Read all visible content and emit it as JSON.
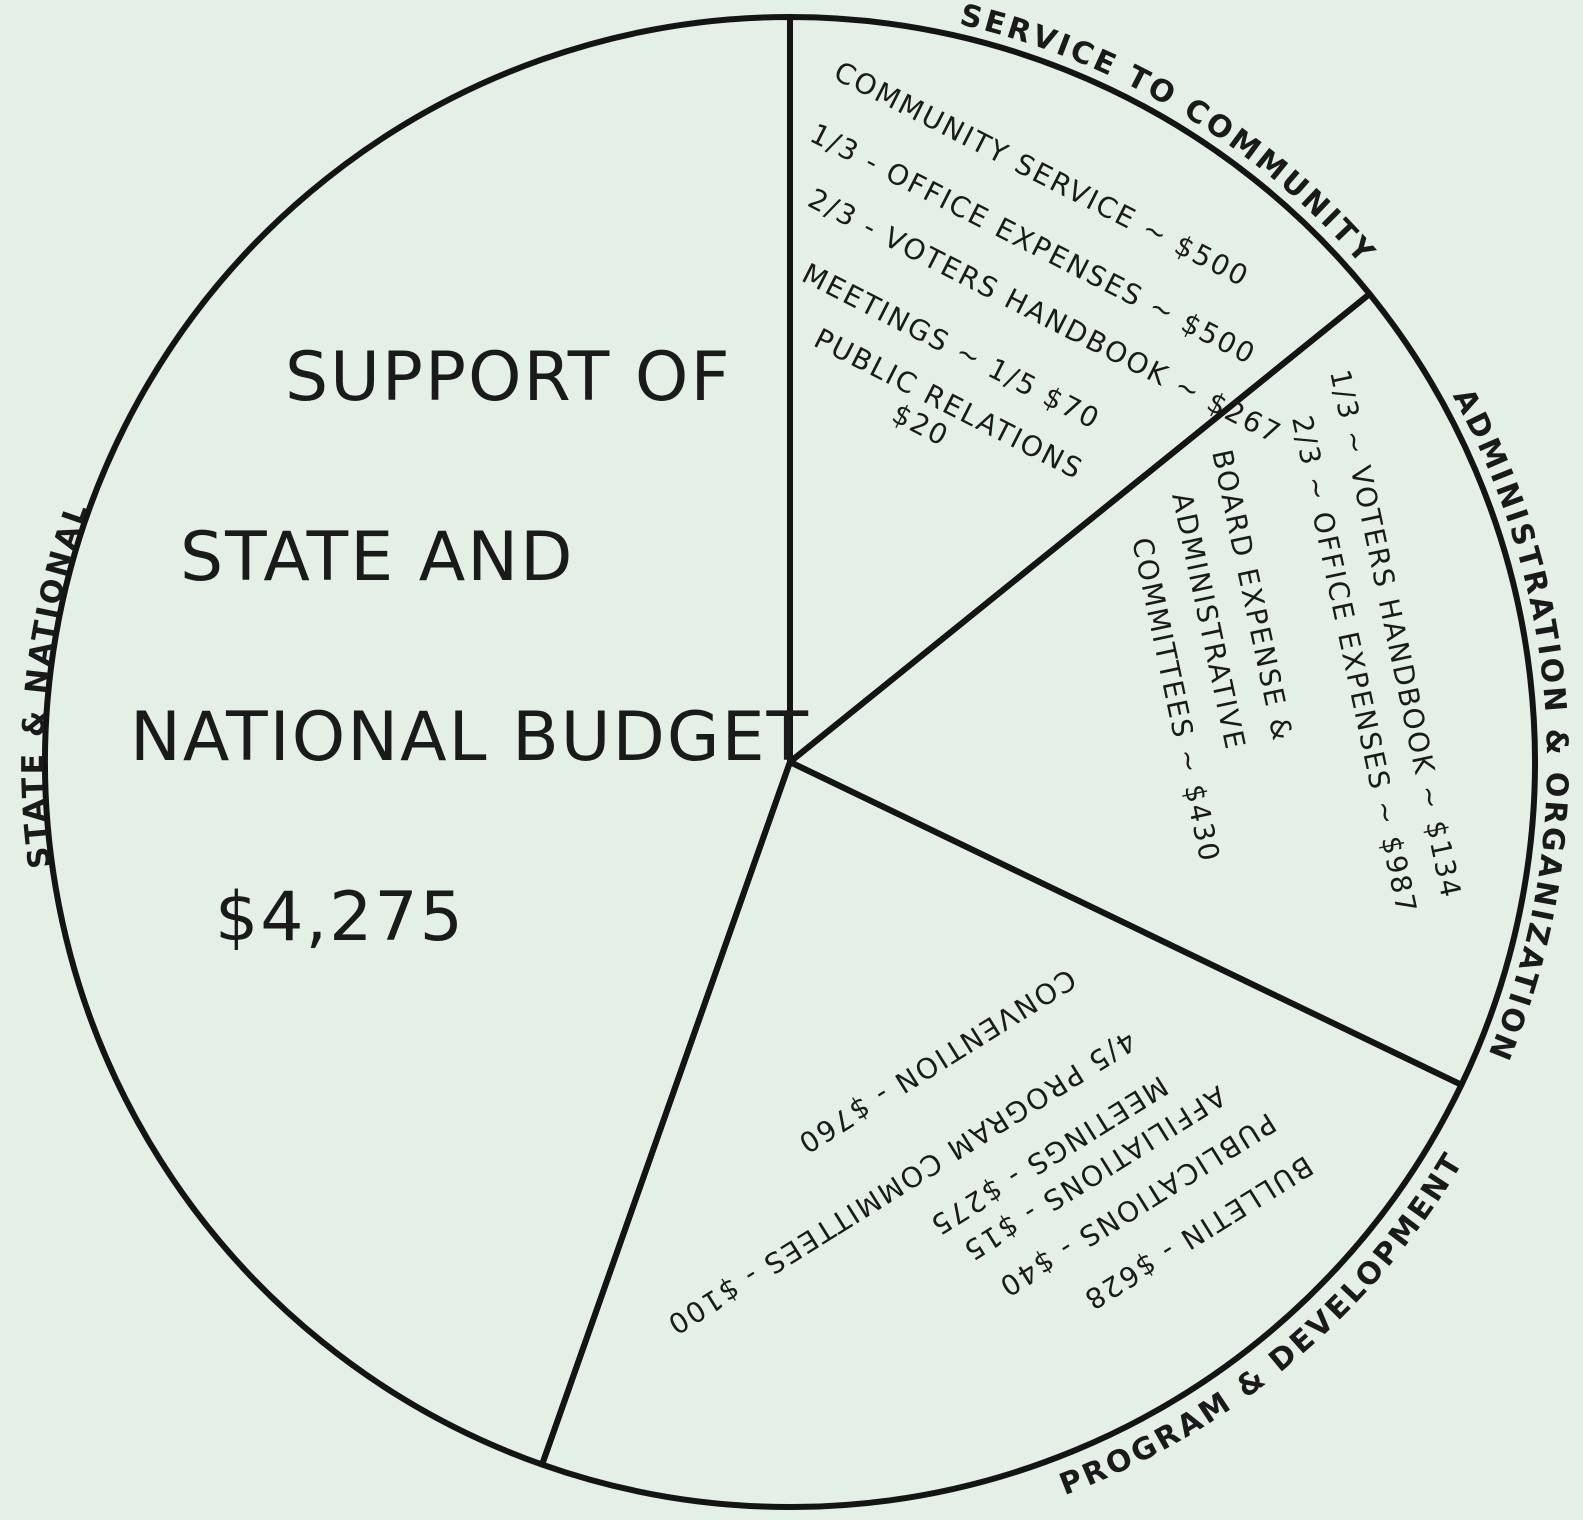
{
  "chart_data": {
    "type": "pie",
    "slices": [
      {
        "name": "SERVICE TO COMMUNITY",
        "value": 1360,
        "items": [
          "COMMUNITY SERVICE ~ $500",
          "1/3 - OFFICE EXPENSES ~ $500",
          "2/3 - VOTERS HANDBOOK ~ $267",
          "MEETINGS ~ 1/5 $70",
          "PUBLIC RELATIONS",
          "$20"
        ]
      },
      {
        "name": "ADMINISTRATION & ORGANIZATION",
        "value": 1720,
        "items": [
          "1/3 ~ VOTERS HANDBOOK ~ $134",
          "2/3 ~ OFFICE EXPENSES ~ $987",
          "BOARD EXPENSE &",
          "ADMINISTRATIVE",
          "COMMITTEES ~ $430"
        ]
      },
      {
        "name": "PROGRAM & DEVELOPMENT",
        "value": 2230,
        "items": [
          "CONVENTION - $760",
          "4/5 PROGRAM COMMITTEES - $100",
          "MEETINGS - $275",
          "AFFILIATIONS - $15",
          "PUBLICATIONS - $40",
          "BULLETIN - $628"
        ]
      },
      {
        "name": "STATE & NATIONAL",
        "value": 4275,
        "items": [
          "SUPPORT OF",
          "STATE AND",
          "NATIONAL BUDGET"
        ],
        "value_label": "$4,275"
      }
    ]
  }
}
